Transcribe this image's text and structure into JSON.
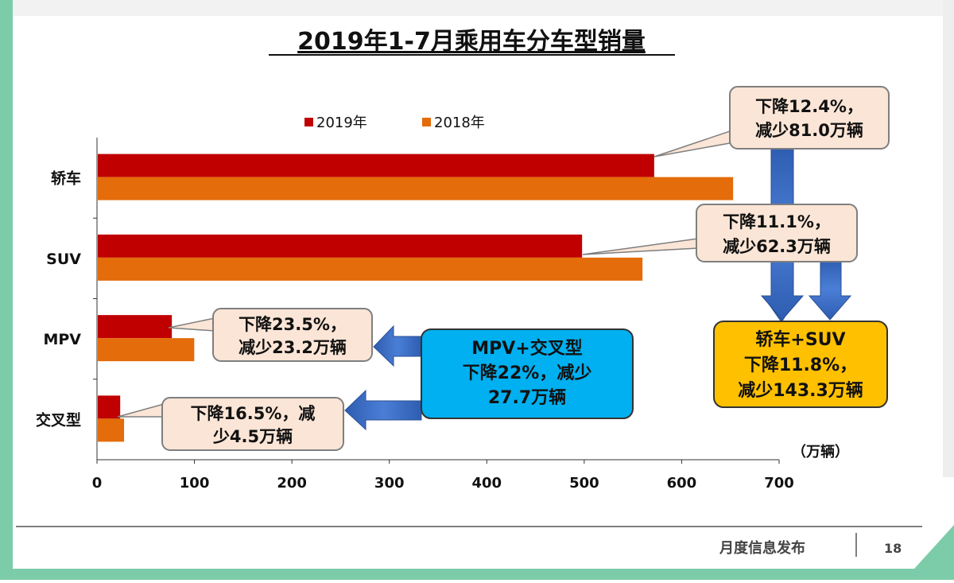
{
  "slide": {
    "footer_label": "月度信息发布",
    "page_number": "18",
    "colors": {
      "frame_green": "#7dcca9",
      "footer_line": "#555555"
    }
  },
  "chart_data": {
    "type": "bar",
    "orientation": "horizontal",
    "title": "2019年1-7月乘用车分车型销量",
    "unit_label": "（万辆）",
    "categories": [
      "轿车",
      "SUV",
      "MPV",
      "交叉型"
    ],
    "series": [
      {
        "name": "2019年",
        "color": "#c00000",
        "values": [
          571,
          497,
          76,
          23
        ]
      },
      {
        "name": "2018年",
        "color": "#e46c0a",
        "values": [
          652,
          559,
          99,
          27
        ]
      }
    ],
    "xlim": [
      0,
      700
    ],
    "x_ticks": [
      0,
      100,
      200,
      300,
      400,
      500,
      600,
      700
    ],
    "grid": false,
    "legend_position": "top-center",
    "annotations": [
      {
        "id": "sedan",
        "lines": [
          "下降12.4%，",
          "减少81.0万辆"
        ]
      },
      {
        "id": "suv",
        "lines": [
          "下降11.1%，",
          "减少62.3万辆"
        ]
      },
      {
        "id": "mpv",
        "lines": [
          "下降23.5%，",
          "减少23.2万辆"
        ]
      },
      {
        "id": "crossover",
        "lines": [
          "下降16.5%，减",
          "少4.5万辆"
        ]
      },
      {
        "id": "mpv_cross_total",
        "lines": [
          "MPV+交叉型",
          "下降22%，减少",
          "27.7万辆"
        ],
        "color": "#00b0f0"
      },
      {
        "id": "sedan_suv_total",
        "lines": [
          "轿车+SUV",
          "下降11.8%，",
          "减少143.3万辆"
        ],
        "color": "#ffc000"
      }
    ]
  }
}
